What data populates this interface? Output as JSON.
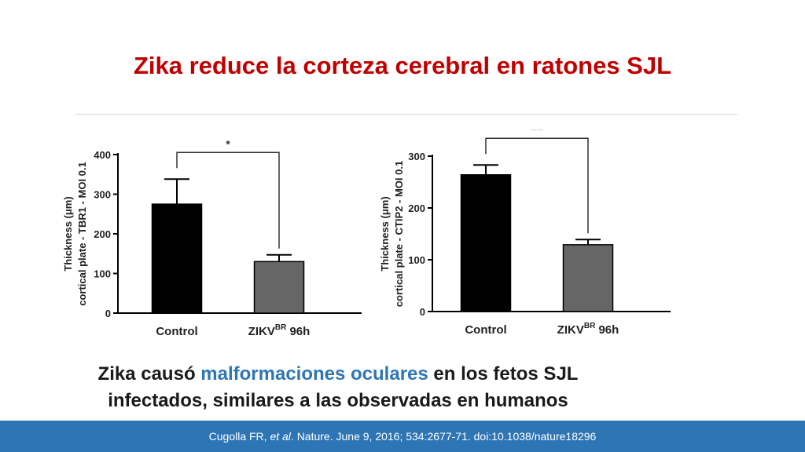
{
  "slide": {
    "title": "Zika reduce la corteza cerebral en ratones SJL",
    "caption": {
      "before": "Zika causó ",
      "highlight": "malformaciones oculares",
      "after": " en los fetos SJL infectados, similares a las observadas en humanos"
    },
    "citation": {
      "author": "Cugolla FR, ",
      "etal": "et al",
      "rest": ". Nature. June 9, 2016; 534:2677-71. doi:10.1038/nature18296"
    }
  },
  "colors": {
    "title": "#c00000",
    "highlight": "#2e75b6",
    "footer": "#2e75b6",
    "bar_control": "#000000",
    "bar_zikv": "#666666"
  },
  "chart_data": [
    {
      "type": "bar",
      "title": "",
      "ylabel_line1": "Thickness (μm)",
      "ylabel_line2": "cortical plate - TBR1 - MOI 0.1",
      "categories": [
        {
          "label": "Control",
          "sup": "",
          "suffix": ""
        },
        {
          "label": "ZIKV",
          "sup": "BR",
          "suffix": " 96h"
        }
      ],
      "values": [
        275,
        130
      ],
      "errors": [
        63,
        17
      ],
      "ylim": [
        0,
        400
      ],
      "yticks": [
        0,
        100,
        200,
        300,
        400
      ],
      "significance": "*"
    },
    {
      "type": "bar",
      "title": "",
      "ylabel_line1": "Thickness (μm)",
      "ylabel_line2": "cortical plate - CTIP2 - MOI 0.1",
      "categories": [
        {
          "label": "Control",
          "sup": "",
          "suffix": ""
        },
        {
          "label": "ZIKV",
          "sup": "BR",
          "suffix": " 96h"
        }
      ],
      "values": [
        264,
        129
      ],
      "errors": [
        19,
        10
      ],
      "ylim": [
        0,
        300
      ],
      "yticks": [
        0,
        100,
        200,
        300
      ],
      "significance": "***"
    }
  ]
}
